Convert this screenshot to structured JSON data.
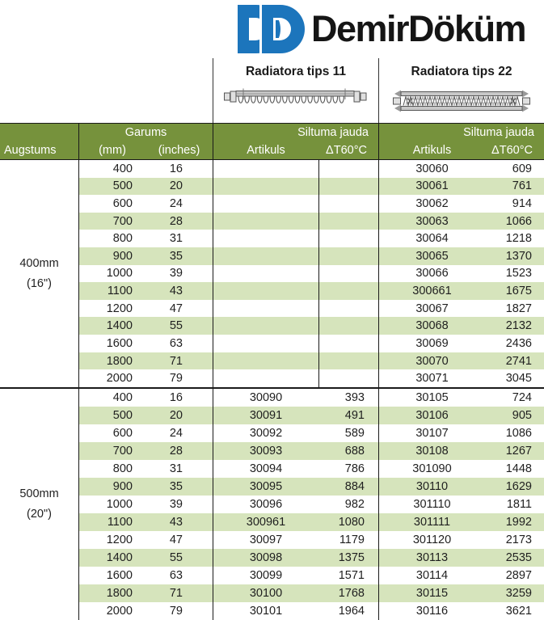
{
  "logo": {
    "brand": "DemirDöküm",
    "mark_color": "#1C75BC"
  },
  "types": [
    {
      "label": "Radiatora tips 11"
    },
    {
      "label": "Radiatora tips 22"
    }
  ],
  "table": {
    "header": {
      "augstums": "Augstums",
      "garums": "Garums",
      "mm": "(mm)",
      "inches": "(inches)",
      "siltuma_jauda": "Siltuma jauda",
      "artikuls": "Artikuls",
      "dt60": "ΔT60°C"
    },
    "colors": {
      "header_bg": "#76923C",
      "stripe_bg": "#D6E4BC",
      "header_text": "#FFFFFF",
      "body_text": "#1F1F1F"
    },
    "sections": [
      {
        "height_label": "400mm",
        "height_sub": "(16\")",
        "rows": [
          [
            "400",
            "16",
            "",
            "",
            "30060",
            "609"
          ],
          [
            "500",
            "20",
            "",
            "",
            "30061",
            "761"
          ],
          [
            "600",
            "24",
            "",
            "",
            "30062",
            "914"
          ],
          [
            "700",
            "28",
            "",
            "",
            "30063",
            "1066"
          ],
          [
            "800",
            "31",
            "",
            "",
            "30064",
            "1218"
          ],
          [
            "900",
            "35",
            "",
            "",
            "30065",
            "1370"
          ],
          [
            "1000",
            "39",
            "",
            "",
            "30066",
            "1523"
          ],
          [
            "1100",
            "43",
            "",
            "",
            "300661",
            "1675"
          ],
          [
            "1200",
            "47",
            "",
            "",
            "30067",
            "1827"
          ],
          [
            "1400",
            "55",
            "",
            "",
            "30068",
            "2132"
          ],
          [
            "1600",
            "63",
            "",
            "",
            "30069",
            "2436"
          ],
          [
            "1800",
            "71",
            "",
            "",
            "30070",
            "2741"
          ],
          [
            "2000",
            "79",
            "",
            "",
            "30071",
            "3045"
          ]
        ]
      },
      {
        "height_label": "500mm",
        "height_sub": "(20\")",
        "rows": [
          [
            "400",
            "16",
            "30090",
            "393",
            "30105",
            "724"
          ],
          [
            "500",
            "20",
            "30091",
            "491",
            "30106",
            "905"
          ],
          [
            "600",
            "24",
            "30092",
            "589",
            "30107",
            "1086"
          ],
          [
            "700",
            "28",
            "30093",
            "688",
            "30108",
            "1267"
          ],
          [
            "800",
            "31",
            "30094",
            "786",
            "301090",
            "1448"
          ],
          [
            "900",
            "35",
            "30095",
            "884",
            "30110",
            "1629"
          ],
          [
            "1000",
            "39",
            "30096",
            "982",
            "301110",
            "1811"
          ],
          [
            "1100",
            "43",
            "300961",
            "1080",
            "301111",
            "1992"
          ],
          [
            "1200",
            "47",
            "30097",
            "1179",
            "301120",
            "2173"
          ],
          [
            "1400",
            "55",
            "30098",
            "1375",
            "30113",
            "2535"
          ],
          [
            "1600",
            "63",
            "30099",
            "1571",
            "30114",
            "2897"
          ],
          [
            "1800",
            "71",
            "30100",
            "1768",
            "30115",
            "3259"
          ],
          [
            "2000",
            "79",
            "30101",
            "1964",
            "30116",
            "3621"
          ]
        ]
      }
    ]
  }
}
